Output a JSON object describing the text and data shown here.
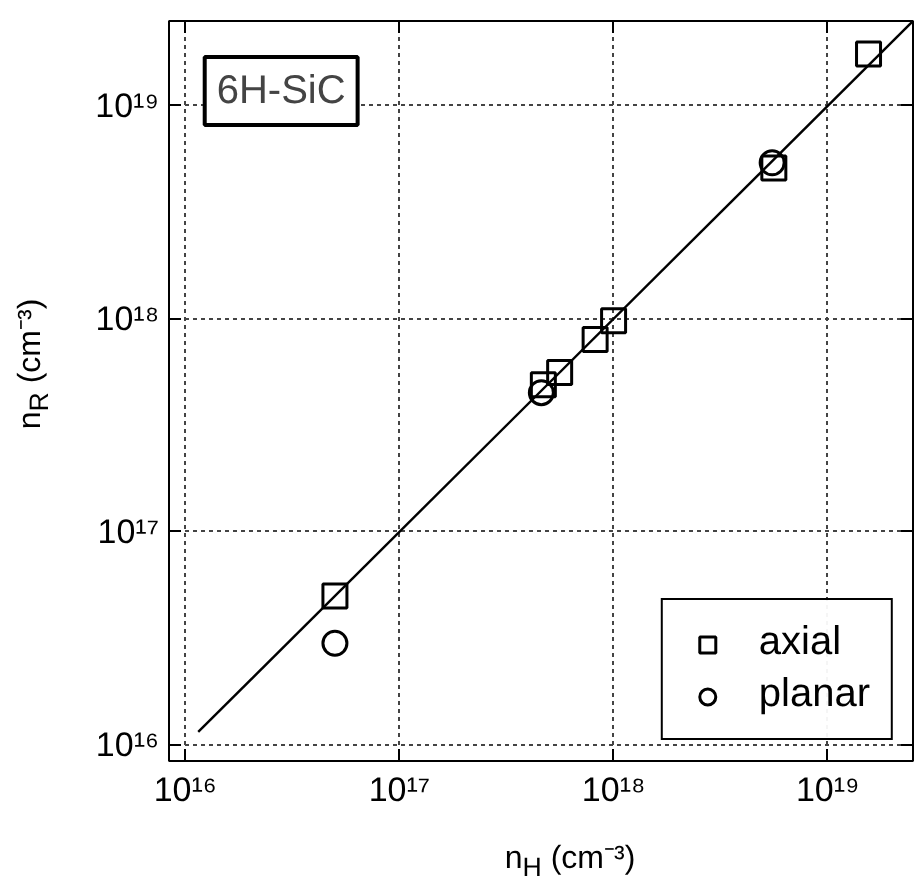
{
  "chart_data": {
    "type": "scatter",
    "xlabel": "n$_{H}$ (cm⁻³)",
    "ylabel": "n$_{R}$ (cm⁻³)",
    "log": "xy",
    "grid": true,
    "legend": "bottom right",
    "xlim": [
      8400000000000000.0,
      2.5e+19
    ],
    "ylim": [
      8400000000000000.0,
      2.5e+19
    ],
    "xticks": [
      {
        "value": 1e+16,
        "label": "10¹⁶"
      },
      {
        "value": 1e+17,
        "label": "10¹⁷"
      },
      {
        "value": 1e+18,
        "label": "10¹⁸"
      },
      {
        "value": 1e+19,
        "label": "10¹⁹"
      }
    ],
    "yticks": [
      {
        "value": 1e+16,
        "label": "10¹⁶"
      },
      {
        "value": 1e+17,
        "label": "10¹⁷"
      },
      {
        "value": 1e+18,
        "label": "10¹⁸"
      },
      {
        "value": 1e+19,
        "label": "10¹⁹"
      }
    ],
    "annotations": [
      "6H-SiC"
    ],
    "series": [
      {
        "name": "axial",
        "marker": "square",
        "color": "#000000",
        "x": [
          5e+16,
          4.7e+17,
          5.6e+17,
          8.2e+17,
          1e+18,
          5.6e+18,
          1.55e+19
        ],
        "values": [
          5e+16,
          4.9e+17,
          5.6e+17,
          8e+17,
          9.8e+17,
          5.1e+18,
          1.75e+19
        ]
      },
      {
        "name": "planar",
        "marker": "circle",
        "color": "#000000",
        "x": [
          5e+16,
          4.6e+17,
          5.5e+18
        ],
        "values": [
          3e+16,
          4.5e+17,
          5.4e+18
        ]
      },
      {
        "type": "line",
        "marker": "none",
        "line_style": "solid",
        "color": "#000000",
        "x": [
          1.15e+16,
          2.5e+19
        ],
        "values": [
          1.15e+16,
          2.5e+19
        ]
      }
    ]
  }
}
